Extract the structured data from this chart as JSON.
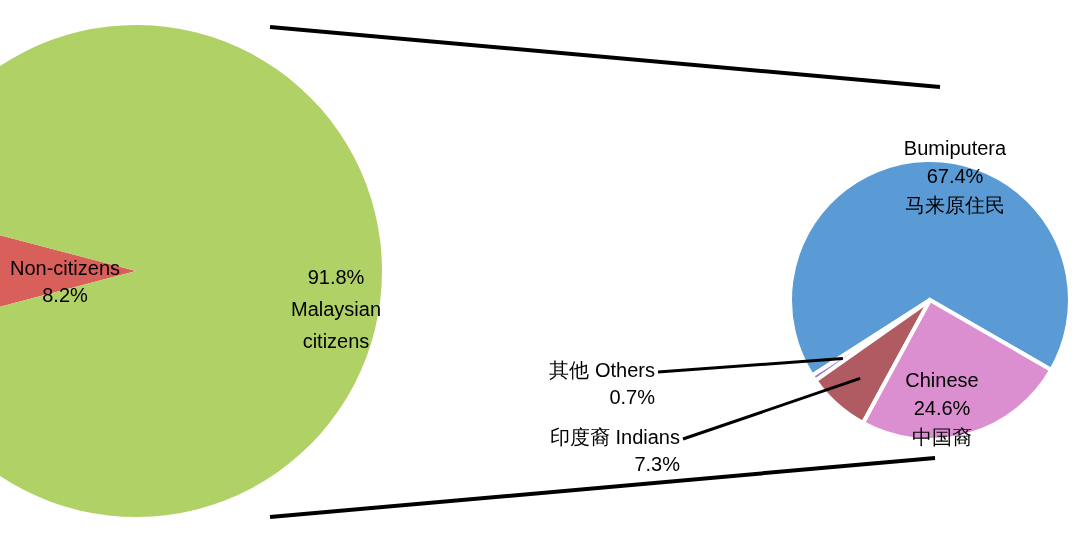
{
  "chart_data": [
    {
      "type": "pie",
      "categories": [
        "Non-citizens",
        "Malaysian citizens"
      ],
      "values": [
        8.2,
        91.8
      ],
      "colors": [
        "#d9605a",
        "#b0d166"
      ],
      "value_labels": [
        "8.2%",
        "91.8%"
      ]
    },
    {
      "type": "pie",
      "categories": [
        "Bumiputera 马来原住民",
        "其他 Others",
        "印度裔 Indians",
        "Chinese 中国裔"
      ],
      "values": [
        67.4,
        0.7,
        7.3,
        24.6
      ],
      "colors": [
        "#5b9bd5",
        "#9b7fd0",
        "#b05a62",
        "#dc8fd0"
      ],
      "value_labels": [
        "67.4%",
        "0.7%",
        "7.3%",
        "24.6%"
      ]
    }
  ]
}
